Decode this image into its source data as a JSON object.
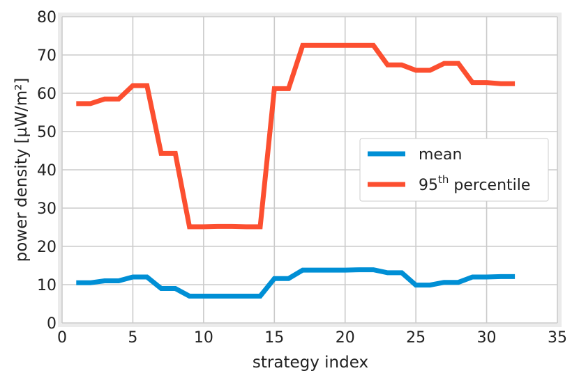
{
  "chart_data": {
    "type": "line",
    "xlabel": "strategy index",
    "ylabel": "power density [µW/m²]",
    "xlim": [
      0,
      35
    ],
    "ylim": [
      0,
      80
    ],
    "x_ticks": [
      "0",
      "5",
      "10",
      "15",
      "20",
      "25",
      "30",
      "35"
    ],
    "y_ticks": [
      "0",
      "10",
      "20",
      "30",
      "40",
      "50",
      "60",
      "70",
      "80"
    ],
    "grid": true,
    "legend_position": "center-right",
    "x": [
      1,
      2,
      3,
      4,
      5,
      6,
      7,
      8,
      9,
      10,
      11,
      12,
      13,
      14,
      15,
      16,
      17,
      18,
      19,
      20,
      21,
      22,
      23,
      24,
      25,
      26,
      27,
      28,
      29,
      30,
      31,
      32
    ],
    "series": [
      {
        "name": "mean",
        "color": "#008fd5",
        "values": [
          10.5,
          10.5,
          11,
          11,
          12,
          12,
          9,
          9,
          7,
          7,
          7,
          7,
          7,
          7,
          11.6,
          11.6,
          13.8,
          13.8,
          13.8,
          13.8,
          13.9,
          13.9,
          13.1,
          13.1,
          9.9,
          9.9,
          10.6,
          10.6,
          12,
          12,
          12.1,
          12.1
        ]
      },
      {
        "name": "95th percentile",
        "name_base": "95",
        "name_sup": "th",
        "name_rest": " percentile",
        "color": "#fc4f30",
        "values": [
          57.3,
          57.3,
          58.5,
          58.5,
          62,
          62,
          44.3,
          44.3,
          25.1,
          25.1,
          25.2,
          25.2,
          25.1,
          25.1,
          61.2,
          61.2,
          72.5,
          72.5,
          72.5,
          72.5,
          72.5,
          72.5,
          67.4,
          67.4,
          66,
          66,
          67.8,
          67.8,
          62.8,
          62.8,
          62.5,
          62.5
        ]
      }
    ]
  }
}
